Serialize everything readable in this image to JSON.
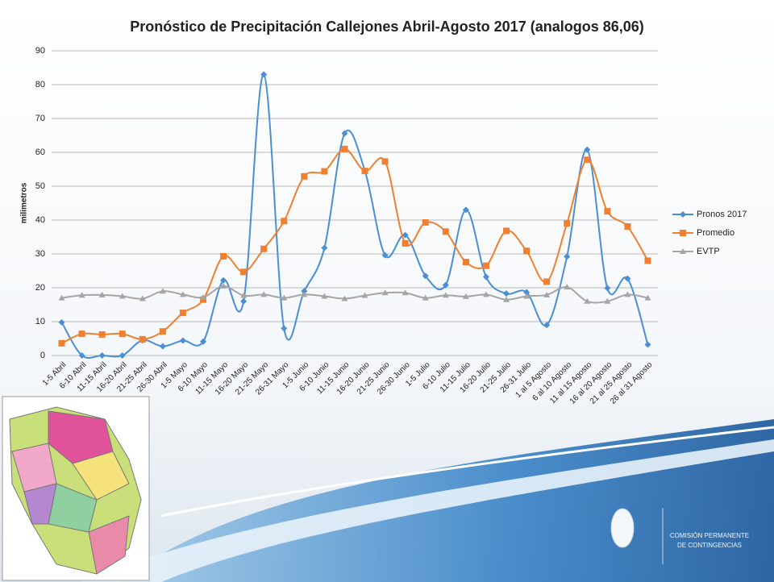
{
  "chart_data": {
    "type": "line",
    "title": "Pronóstico de Precipitación Callejones Abril-Agosto 2017 (analogos 86,06)",
    "y_label": "milimetros",
    "categories": [
      "1-5 Abril",
      "6-10 Abril",
      "11-15 Abril",
      "16-20 Abril",
      "21-25 Abril",
      "26-30 Abril",
      "1-5 Mayo",
      "6-10 Mayo",
      "11-15 Mayo",
      "16-20 Mayo",
      "21-25 Mayo",
      "26-31 Mayo",
      "1-5 Junio",
      "6-10 Junio",
      "11-15 Junio",
      "16-20 Junio",
      "21-25 Junio",
      "26-30 Junio",
      "1-5 Julio",
      "6-10 Julio",
      "11-15 Julio",
      "16-20 Julio",
      "21-25 Julio",
      "26-31 Julio",
      "1 al 5 Agosto",
      "6 al 10 Agosto",
      "11 al 15 Agosto",
      "16 al 20 Agosto",
      "21 al 25 Agosto",
      "26 al 31 Agosto"
    ],
    "series": [
      {
        "name": "Pronos 2017",
        "color": "#4a8fd4",
        "marker": "diamond",
        "values": [
          9.8,
          0,
          0,
          0,
          4.5,
          2.7,
          4.4,
          4.1,
          22.2,
          16,
          83,
          8,
          19,
          31.8,
          65.6,
          54.6,
          29.6,
          35.6,
          23.5,
          20.8,
          43,
          23.2,
          18.3,
          18.7,
          9,
          29.2,
          60.8,
          19.9,
          22.7,
          3.2
        ]
      },
      {
        "name": "Promedio",
        "color": "#f08030",
        "marker": "square",
        "values": [
          3.6,
          6.4,
          6.2,
          6.4,
          4.8,
          7.1,
          12.6,
          16.5,
          29.3,
          24.7,
          31.5,
          39.7,
          52.9,
          54.4,
          61,
          54.5,
          57.3,
          33.1,
          39.3,
          36.6,
          27.6,
          26.5,
          36.8,
          30.9,
          21.8,
          39,
          57.8,
          42.6,
          38.1,
          28
        ]
      },
      {
        "name": "EVTP",
        "color": "#a5a5a5",
        "marker": "triangle",
        "values": [
          17,
          17.8,
          17.9,
          17.5,
          16.8,
          19,
          18,
          17.2,
          20.5,
          17.7,
          18,
          17,
          18,
          17.5,
          16.8,
          17.7,
          18.5,
          18.5,
          17,
          17.8,
          17.4,
          18,
          16.5,
          17.5,
          17.9,
          20.2,
          16,
          16,
          18,
          17
        ]
      }
    ],
    "ylim": [
      0,
      90
    ],
    "yticks": [
      0,
      10,
      20,
      30,
      40,
      50,
      60,
      70,
      80,
      90
    ],
    "grid": true,
    "smooth": true,
    "legend": "right"
  },
  "logo": {
    "line1": "COMISIÓN PERMANENTE",
    "line2": "DE CONTINGENCIAS"
  }
}
